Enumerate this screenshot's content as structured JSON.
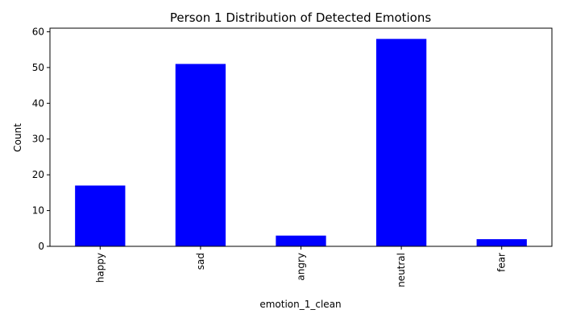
{
  "chart_data": {
    "type": "bar",
    "title": "Person 1 Distribution of Detected Emotions",
    "xlabel": "emotion_1_clean",
    "ylabel": "Count",
    "categories": [
      "happy",
      "sad",
      "angry",
      "neutral",
      "fear"
    ],
    "values": [
      17,
      51,
      3,
      58,
      2
    ],
    "ylim": [
      0,
      61
    ],
    "yticks": [
      0,
      10,
      20,
      30,
      40,
      50,
      60
    ],
    "bar_color": "#0000ff",
    "grid": false,
    "legend": "none"
  }
}
